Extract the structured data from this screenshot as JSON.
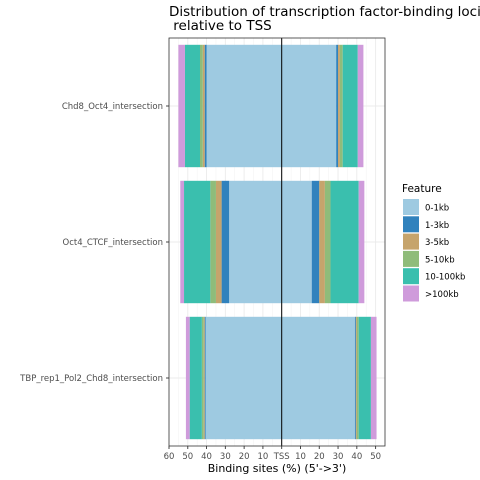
{
  "chart_data": {
    "type": "bar",
    "orientation": "horizontal-diverging",
    "title_line1": "Distribution of transcription factor-binding loci",
    "title_line2": " relative to TSS",
    "xlabel": "Binding sites (%) (5'->3')",
    "ylabel": "",
    "xlim": [
      -60,
      55
    ],
    "x_tick_values": [
      -60,
      -50,
      -40,
      -30,
      -20,
      -10,
      0,
      10,
      20,
      30,
      40,
      50
    ],
    "x_tick_labels": [
      "60",
      "50",
      "40",
      "30",
      "20",
      "10",
      "TSS",
      "10",
      "20",
      "30",
      "40",
      "50"
    ],
    "categories": [
      "Chd8_Oct4_intersection",
      "Oct4_CTCF_intersection",
      "TBP_rep1_Pol2_Chd8_intersection"
    ],
    "legend_title": "Feature",
    "legend_position": "right",
    "grid": true,
    "series": [
      {
        "name": "0-1kb",
        "color": "#9ECAE1",
        "upstream": [
          40.0,
          28.0,
          40.5
        ],
        "downstream": [
          29.0,
          16.0,
          39.0
        ]
      },
      {
        "name": "1-3kb",
        "color": "#3182BD",
        "upstream": [
          1.0,
          4.0,
          0.5
        ],
        "downstream": [
          1.0,
          4.0,
          0.5
        ]
      },
      {
        "name": "3-5kb",
        "color": "#C6A46C",
        "upstream": [
          1.0,
          3.0,
          0.5
        ],
        "downstream": [
          1.0,
          3.0,
          0.5
        ]
      },
      {
        "name": "5-10kb",
        "color": "#8FBC7A",
        "upstream": [
          1.5,
          3.0,
          1.0
        ],
        "downstream": [
          1.5,
          3.0,
          1.0
        ]
      },
      {
        "name": "10-100kb",
        "color": "#3ABFAE",
        "upstream": [
          8.0,
          14.0,
          6.5
        ],
        "downstream": [
          8.0,
          15.0,
          6.5
        ]
      },
      {
        "name": ">100kb",
        "color": "#CF9BDB",
        "upstream": [
          3.5,
          2.0,
          2.0
        ],
        "downstream": [
          3.0,
          3.0,
          3.0
        ]
      }
    ]
  }
}
